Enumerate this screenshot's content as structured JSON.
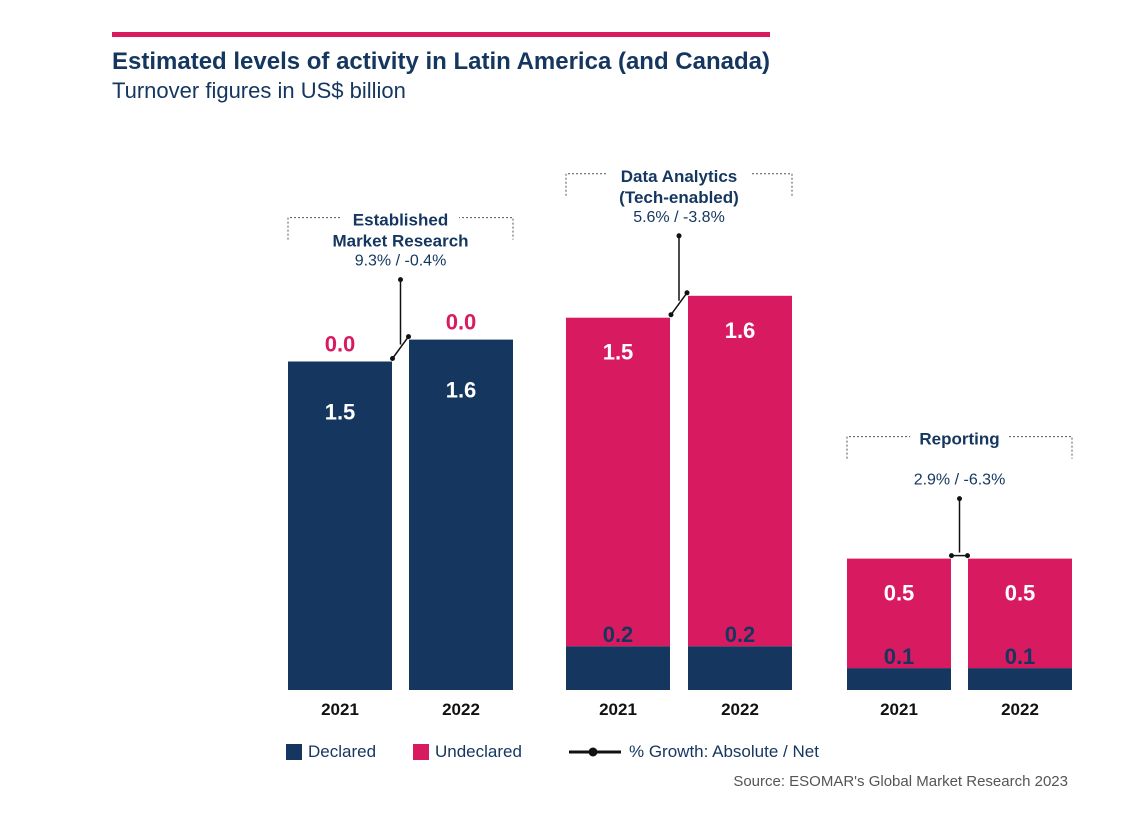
{
  "header": {
    "title": "Estimated levels of activity in Latin America (and Canada)",
    "subtitle": "Turnover figures in US$ billion"
  },
  "colors": {
    "declared": "#14365f",
    "undeclared": "#d81b60",
    "text": "#14365f"
  },
  "legend": {
    "declared": "Declared",
    "undeclared": "Undeclared",
    "growth": "% Growth: Absolute / Net"
  },
  "source": "Source: ESOMAR's Global Market Research 2023",
  "chart_data": {
    "type": "bar",
    "stacked": true,
    "title": "Estimated levels of activity in Latin America (and Canada)",
    "ylabel": "Turnover figures in US$ billion",
    "series": [
      {
        "name": "Declared",
        "color": "#14365f"
      },
      {
        "name": "Undeclared",
        "color": "#d81b60"
      }
    ],
    "groups": [
      {
        "name": "Established Market Research",
        "label_lines": [
          "Established",
          "Market Research"
        ],
        "growth": "9.3% / -0.4%",
        "bars": [
          {
            "year": "2021",
            "declared": 1.5,
            "undeclared": 0.0,
            "declared_label": "1.5",
            "undeclared_label": "0.0"
          },
          {
            "year": "2022",
            "declared": 1.6,
            "undeclared": 0.0,
            "declared_label": "1.6",
            "undeclared_label": "0.0"
          }
        ]
      },
      {
        "name": "Data Analytics (Tech-enabled)",
        "label_lines": [
          "Data Analytics",
          "(Tech-enabled)"
        ],
        "growth": "5.6% / -3.8%",
        "bars": [
          {
            "year": "2021",
            "declared": 0.2,
            "undeclared": 1.5,
            "declared_label": "0.2",
            "undeclared_label": "1.5"
          },
          {
            "year": "2022",
            "declared": 0.2,
            "undeclared": 1.6,
            "declared_label": "0.2",
            "undeclared_label": "1.6"
          }
        ]
      },
      {
        "name": "Reporting",
        "label_lines": [
          "Reporting"
        ],
        "growth": "2.9% / -6.3%",
        "bars": [
          {
            "year": "2021",
            "declared": 0.1,
            "undeclared": 0.5,
            "declared_label": "0.1",
            "undeclared_label": "0.5"
          },
          {
            "year": "2022",
            "declared": 0.1,
            "undeclared": 0.5,
            "declared_label": "0.1",
            "undeclared_label": "0.5"
          }
        ]
      }
    ]
  }
}
